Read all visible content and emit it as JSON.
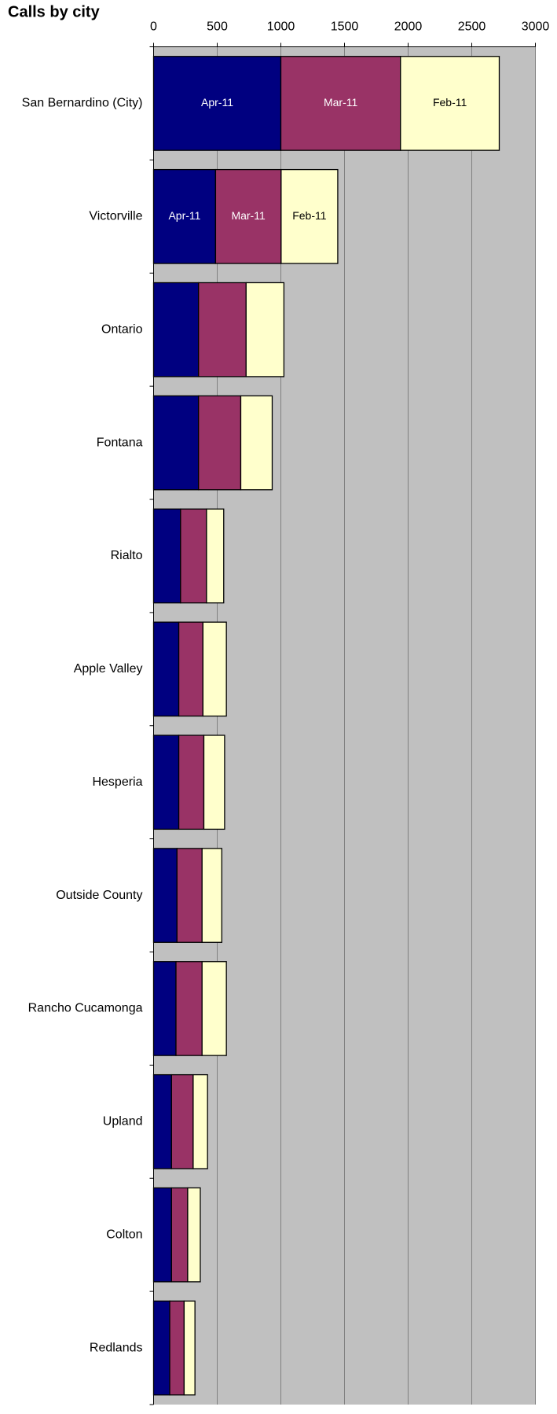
{
  "chart_data": {
    "type": "bar",
    "orientation": "horizontal",
    "stacked": true,
    "title": "Calls by city",
    "categories": [
      "San Bernardino (City)",
      "Victorville",
      "Ontario",
      "Fontana",
      "Rialto",
      "Apple Valley",
      "Hesperia",
      "Outside County",
      "Rancho Cucamonga",
      "Upland",
      "Colton",
      "Redlands"
    ],
    "series": [
      {
        "name": "Apr-11",
        "color": "#000080",
        "values": [
          1000,
          487,
          353,
          353,
          212,
          198,
          198,
          184,
          176,
          141,
          141,
          127
        ]
      },
      {
        "name": "Mar-11",
        "color": "#993366",
        "values": [
          940,
          515,
          374,
          332,
          204,
          190,
          197,
          197,
          205,
          170,
          127,
          113
        ]
      },
      {
        "name": "Feb-11",
        "color": "#ffffcc",
        "values": [
          776,
          445,
          297,
          247,
          135,
          184,
          163,
          155,
          191,
          113,
          99,
          85
        ]
      }
    ],
    "labeled_categories": [
      0,
      1
    ],
    "xlim": [
      0,
      3000
    ],
    "xticks": [
      0,
      500,
      1000,
      1500,
      2000,
      2500,
      3000
    ],
    "grid": true,
    "plot_background": "#c0c0c0"
  }
}
